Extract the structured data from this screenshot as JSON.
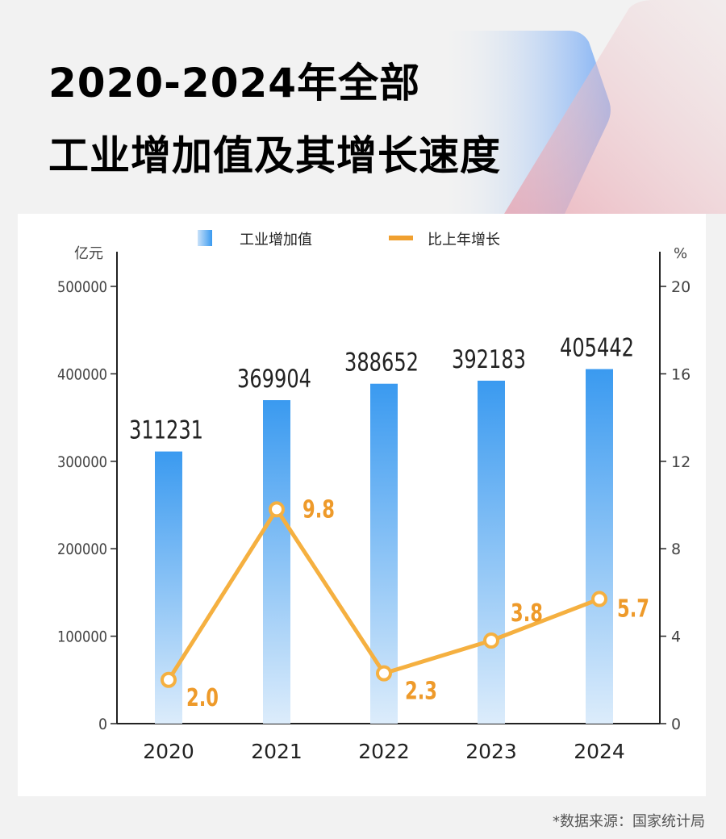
{
  "title_line1": "2020-2024年全部",
  "title_line2": "工业增加值及其增长速度",
  "source": "*数据来源：国家统计局",
  "colors": {
    "bar_top": "#3a9af0",
    "bar_bottom": "#dcecfb",
    "line": "#f5b040",
    "line_label": "#ee9a2a"
  },
  "chart_data": {
    "type": "bar+line",
    "categories": [
      "2020",
      "2021",
      "2022",
      "2023",
      "2024"
    ],
    "series": [
      {
        "name": "工业增加值",
        "type": "bar",
        "axis": "left",
        "values": [
          311231,
          369904,
          388652,
          392183,
          405442
        ],
        "labels": [
          "311231",
          "369904",
          "388652",
          "392183",
          "405442"
        ]
      },
      {
        "name": "比上年增长",
        "type": "line",
        "axis": "right",
        "values": [
          2.0,
          9.8,
          2.3,
          3.8,
          5.7
        ],
        "labels": [
          "2.0",
          "9.8",
          "2.3",
          "3.8",
          "5.7"
        ]
      }
    ],
    "left_axis": {
      "unit": "亿元",
      "range": [
        0,
        500000
      ],
      "ticks": [
        "0",
        "100000",
        "200000",
        "300000",
        "400000",
        "500000"
      ]
    },
    "right_axis": {
      "unit": "%",
      "range": [
        0,
        20
      ],
      "ticks": [
        "0",
        "4",
        "8",
        "12",
        "16",
        "20"
      ]
    },
    "legend_placement": "top-center",
    "grid": false
  }
}
